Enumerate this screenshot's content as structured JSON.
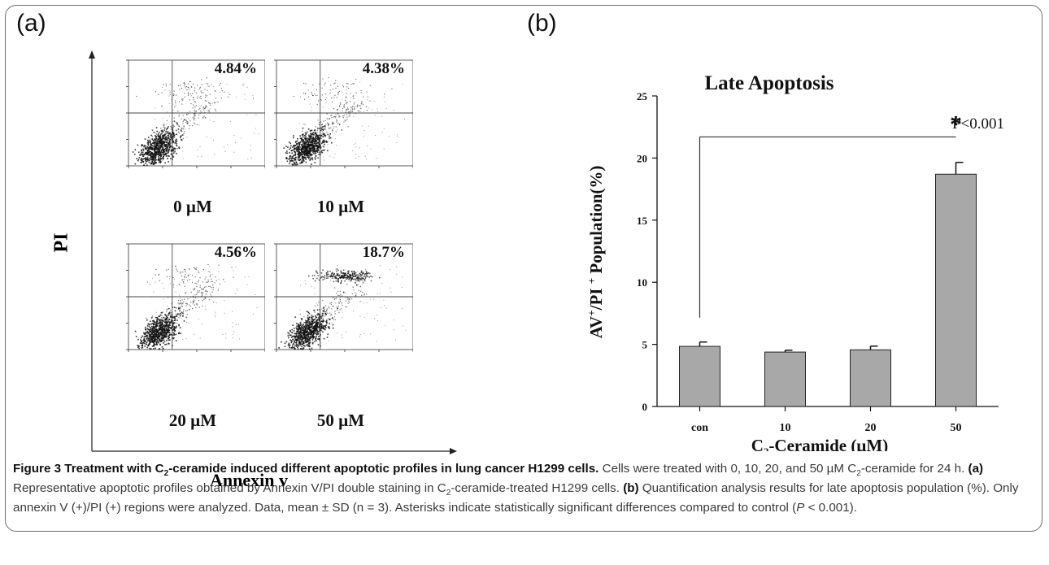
{
  "figure": {
    "panel_a_label": "(a)",
    "panel_b_label": "(b)",
    "panel_a": {
      "y_axis_label": "PI",
      "x_axis_label": "Annexin v",
      "plots": [
        {
          "dose": "0 µM",
          "percent": "4.84%"
        },
        {
          "dose": "10 µM",
          "percent": "4.38%"
        },
        {
          "dose": "20 µM",
          "percent": "4.56%"
        },
        {
          "dose": "50 µM",
          "percent": "18.7%"
        }
      ]
    },
    "caption": {
      "title_pre": "Figure 3 Treatment with C",
      "title_sub": "2",
      "title_post": "-ceramide induced different apoptotic profiles in lung cancer H1299 cells.",
      "text_1": " Cells were treated with 0, 10, 20, and 50 µM C",
      "text_1_sub": "2",
      "text_2": "-ceramide for 24 h. ",
      "a_label": "(a)",
      "text_3": " Representative apoptotic profiles obtained by Annexin V/PI double staining in C",
      "text_3_sub": "2",
      "text_4": "-ceramide-treated H1299 cells. ",
      "b_label": "(b)",
      "text_5": " Quantification analysis results for late apoptosis population (%). Only annexin V (+)/PI (+) regions were analyzed. Data, mean ± SD (n = 3). Asterisks indicate statistically significant differences compared to control (",
      "p_italic": "P",
      "text_6": " < 0.001)."
    }
  },
  "chart_data": {
    "type": "bar",
    "title": "Late Apoptosis",
    "categories": [
      "con",
      "10",
      "20",
      "50"
    ],
    "values": [
      4.84,
      4.38,
      4.56,
      18.7
    ],
    "errors": [
      0.35,
      0.15,
      0.3,
      0.95
    ],
    "ylim": [
      0,
      25
    ],
    "yticks": [
      0,
      5,
      10,
      15,
      20,
      25
    ],
    "ylabel_parts": [
      "AV",
      "+",
      "/PI ",
      "+",
      " Population(%)"
    ],
    "xlabel_pre": "C",
    "xlabel_sub": "2",
    "xlabel_post": "-Ceramide (µM)",
    "annotation_p": "P<0.001",
    "significance_marker": "*",
    "bar_color": "#a8a8a8"
  }
}
